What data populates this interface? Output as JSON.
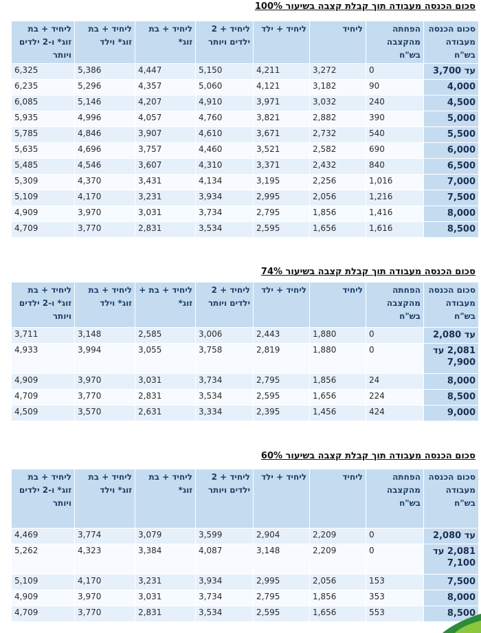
{
  "sections": [
    {
      "title": "סכום הכנסה מעבודה תוך קבלת קצבה בשיעור 100%",
      "headers": [
        "סכום הכנסה מעבודה בש\"ח",
        "הפחתה מהקצבה בש\"ח",
        "ליחיד",
        "ליחיד + ילד",
        "ליחיד + 2 ילדים ויותר",
        "ליחיד + בת זוג*",
        "ליחיד + בת זוג* וילד",
        "ליחיד + בת זוג* ו-2 ילדים ויותר"
      ],
      "rows": [
        [
          "עד 3,700",
          "0",
          "3,272",
          "4,211",
          "5,150",
          "4,447",
          "5,386",
          "6,325"
        ],
        [
          "4,000",
          "90",
          "3,182",
          "4,121",
          "5,060",
          "4,357",
          "5,296",
          "6,235"
        ],
        [
          "4,500",
          "240",
          "3,032",
          "3,971",
          "4,910",
          "4,207",
          "5,146",
          "6,085"
        ],
        [
          "5,000",
          "390",
          "2,882",
          "3,821",
          "4,760",
          "4,057",
          "4,996",
          "5,935"
        ],
        [
          "5,500",
          "540",
          "2,732",
          "3,671",
          "4,610",
          "3,907",
          "4,846",
          "5,785"
        ],
        [
          "6,000",
          "690",
          "2,582",
          "3,521",
          "4,460",
          "3,757",
          "4,696",
          "5,635"
        ],
        [
          "6,500",
          "840",
          "2,432",
          "3,371",
          "4,310",
          "3,607",
          "4,546",
          "5,485"
        ],
        [
          "7,000",
          "1,016",
          "2,256",
          "3,195",
          "4,134",
          "3,431",
          "4,370",
          "5,309"
        ],
        [
          "7,500",
          "1,216",
          "2,056",
          "2,995",
          "3,934",
          "3,231",
          "4,170",
          "5,109"
        ],
        [
          "8,000",
          "1,416",
          "1,856",
          "2,795",
          "3,734",
          "3,031",
          "3,970",
          "4,909"
        ],
        [
          "8,500",
          "1,616",
          "1,656",
          "2,595",
          "3,534",
          "2,831",
          "3,770",
          "4,709"
        ]
      ]
    },
    {
      "title": "סכום הכנסה מעבודה תוך קבלת קצבה בשיעור 74%",
      "headers": [
        "סכום הכנסה מעבודה בש\"ח",
        "הפחתה מהקצבה בש\"ח",
        "ליחיד",
        "ליחיד + ילד",
        "ליחיד + 2 ילדים ויותר",
        "ליחיד + בת + זוג*",
        "ליחיד + בת זוג* וילד",
        "ליחיד + בת זוג* ו-2 ילדים ויותר"
      ],
      "rows": [
        [
          "עד 2,080",
          "0",
          "1,880",
          "2,443",
          "3,006",
          "2,585",
          "3,148",
          "3,711"
        ],
        [
          "2,081 עד 7,900",
          "0",
          "1,880",
          "2,819",
          "3,758",
          "3,055",
          "3,994",
          "4,933"
        ],
        [
          "8,000",
          "24",
          "1,856",
          "2,795",
          "3,734",
          "3,031",
          "3,970",
          "4,909"
        ],
        [
          "8,500",
          "224",
          "1,656",
          "2,595",
          "3,534",
          "2,831",
          "3,770",
          "4,709"
        ],
        [
          "9,000",
          "424",
          "1,456",
          "2,395",
          "3,334",
          "2,631",
          "3,570",
          "4,509"
        ]
      ]
    },
    {
      "title": "סכום הכנסה מעבודה תוך קבלת קצבה בשיעור 60%",
      "headers": [
        "סכום הכנסה מעבודה בש\"ח",
        "הפחתה מהקצבה בש\"ח",
        "ליחיד",
        "ליחיד + ילד",
        "ליחיד + 2 ילדים ויותר",
        "ליחיד + בת זוג*",
        "ליחיד + בת זוג* וילד",
        "ליחיד + בת זוג* ו-2 ילדים ויותר"
      ],
      "rows": [
        [
          "עד 2,080",
          "0",
          "2,209",
          "2,904",
          "3,599",
          "3,079",
          "3,774",
          "4,469"
        ],
        [
          "2,081 עד 7,100",
          "0",
          "2,209",
          "3,148",
          "4,087",
          "3,384",
          "4,323",
          "5,262"
        ],
        [
          "7,500",
          "153",
          "2,056",
          "2,995",
          "3,934",
          "3,231",
          "4,170",
          "5,109"
        ],
        [
          "8,000",
          "353",
          "1,856",
          "2,795",
          "3,734",
          "3,031",
          "3,970",
          "4,909"
        ],
        [
          "8,500",
          "553",
          "1,656",
          "2,595",
          "3,534",
          "2,831",
          "3,770",
          "4,709"
        ]
      ]
    }
  ],
  "colors": {
    "header_bg": "#c5dcf0",
    "row_odd": "#e6f0fa",
    "row_even": "#f7fbff",
    "accent": "#2e8b3a"
  }
}
